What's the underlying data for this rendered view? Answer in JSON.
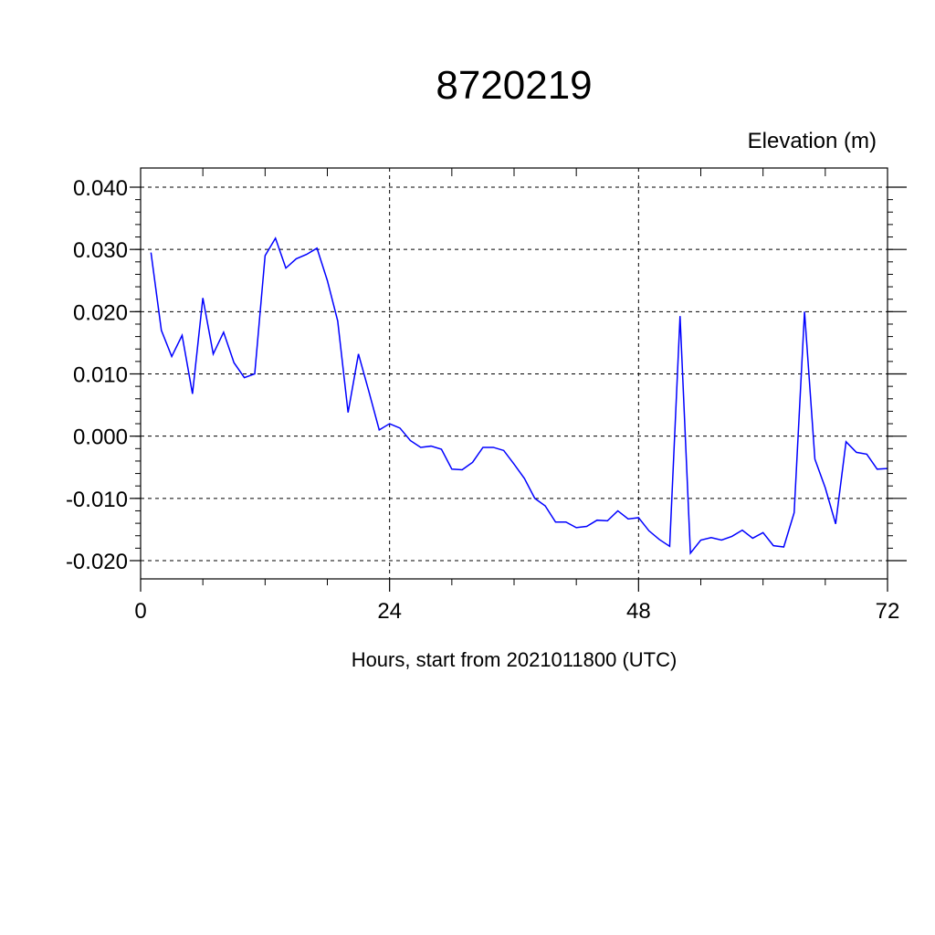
{
  "chart_data": {
    "type": "line",
    "title": "8720219",
    "subtitle": "Elevation (m)",
    "xlabel": "Hours, start from 2021011800 (UTC)",
    "ylabel": "",
    "xlim": [
      0,
      72
    ],
    "ylim": [
      -0.02,
      0.04
    ],
    "x_ticks": [
      0,
      24,
      48,
      72
    ],
    "x_tick_labels": [
      "0",
      "24",
      "48",
      "72"
    ],
    "y_ticks": [
      -0.02,
      -0.01,
      0.0,
      0.01,
      0.02,
      0.03,
      0.04
    ],
    "y_tick_labels": [
      "-0.020",
      "-0.010",
      "0.000",
      "0.010",
      "0.020",
      "0.030",
      "0.040"
    ],
    "grid": "dashed at major ticks",
    "colors": {
      "series": "#0000ff",
      "axis": "#000000",
      "grid": "#000000"
    },
    "series": [
      {
        "x": [
          1,
          2,
          3,
          4,
          5,
          6,
          7,
          8,
          9,
          10,
          11,
          12,
          13,
          14,
          15,
          16,
          17,
          18,
          19,
          20,
          21,
          22,
          23,
          24,
          25,
          26,
          27,
          28,
          29,
          30,
          31,
          32,
          33,
          34,
          35,
          36,
          37,
          38,
          39,
          40,
          41,
          42,
          43,
          44,
          45,
          46,
          47,
          48,
          49,
          50,
          51,
          52,
          53,
          54,
          55,
          56,
          57,
          58,
          59,
          60,
          61,
          62,
          63,
          64,
          65,
          66,
          67,
          68,
          69,
          70,
          71,
          72
        ],
        "values": [
          0.0295,
          0.017,
          0.0128,
          0.0162,
          0.0068,
          0.0222,
          0.0132,
          0.0167,
          0.0118,
          0.0094,
          0.01,
          0.029,
          0.0318,
          0.027,
          0.0285,
          0.0292,
          0.0302,
          0.025,
          0.0185,
          0.0038,
          0.0132,
          0.0072,
          0.001,
          0.002,
          0.0013,
          -0.0007,
          -0.0018,
          -0.0016,
          -0.0021,
          -0.0053,
          -0.0054,
          -0.0042,
          -0.0018,
          -0.0018,
          -0.0023,
          -0.0045,
          -0.0068,
          -0.01,
          -0.0112,
          -0.0138,
          -0.0138,
          -0.0147,
          -0.0145,
          -0.0135,
          -0.0136,
          -0.012,
          -0.0133,
          -0.0131,
          -0.0152,
          -0.0166,
          -0.0177,
          0.0193,
          -0.0188,
          -0.0167,
          -0.0163,
          -0.0167,
          -0.0161,
          -0.0151,
          -0.0164,
          -0.0155,
          -0.0176,
          -0.0178,
          -0.0123,
          0.02,
          -0.0037,
          -0.0083,
          -0.0141,
          -0.0009,
          -0.0026,
          -0.0029,
          -0.0053,
          -0.0052
        ]
      }
    ]
  }
}
